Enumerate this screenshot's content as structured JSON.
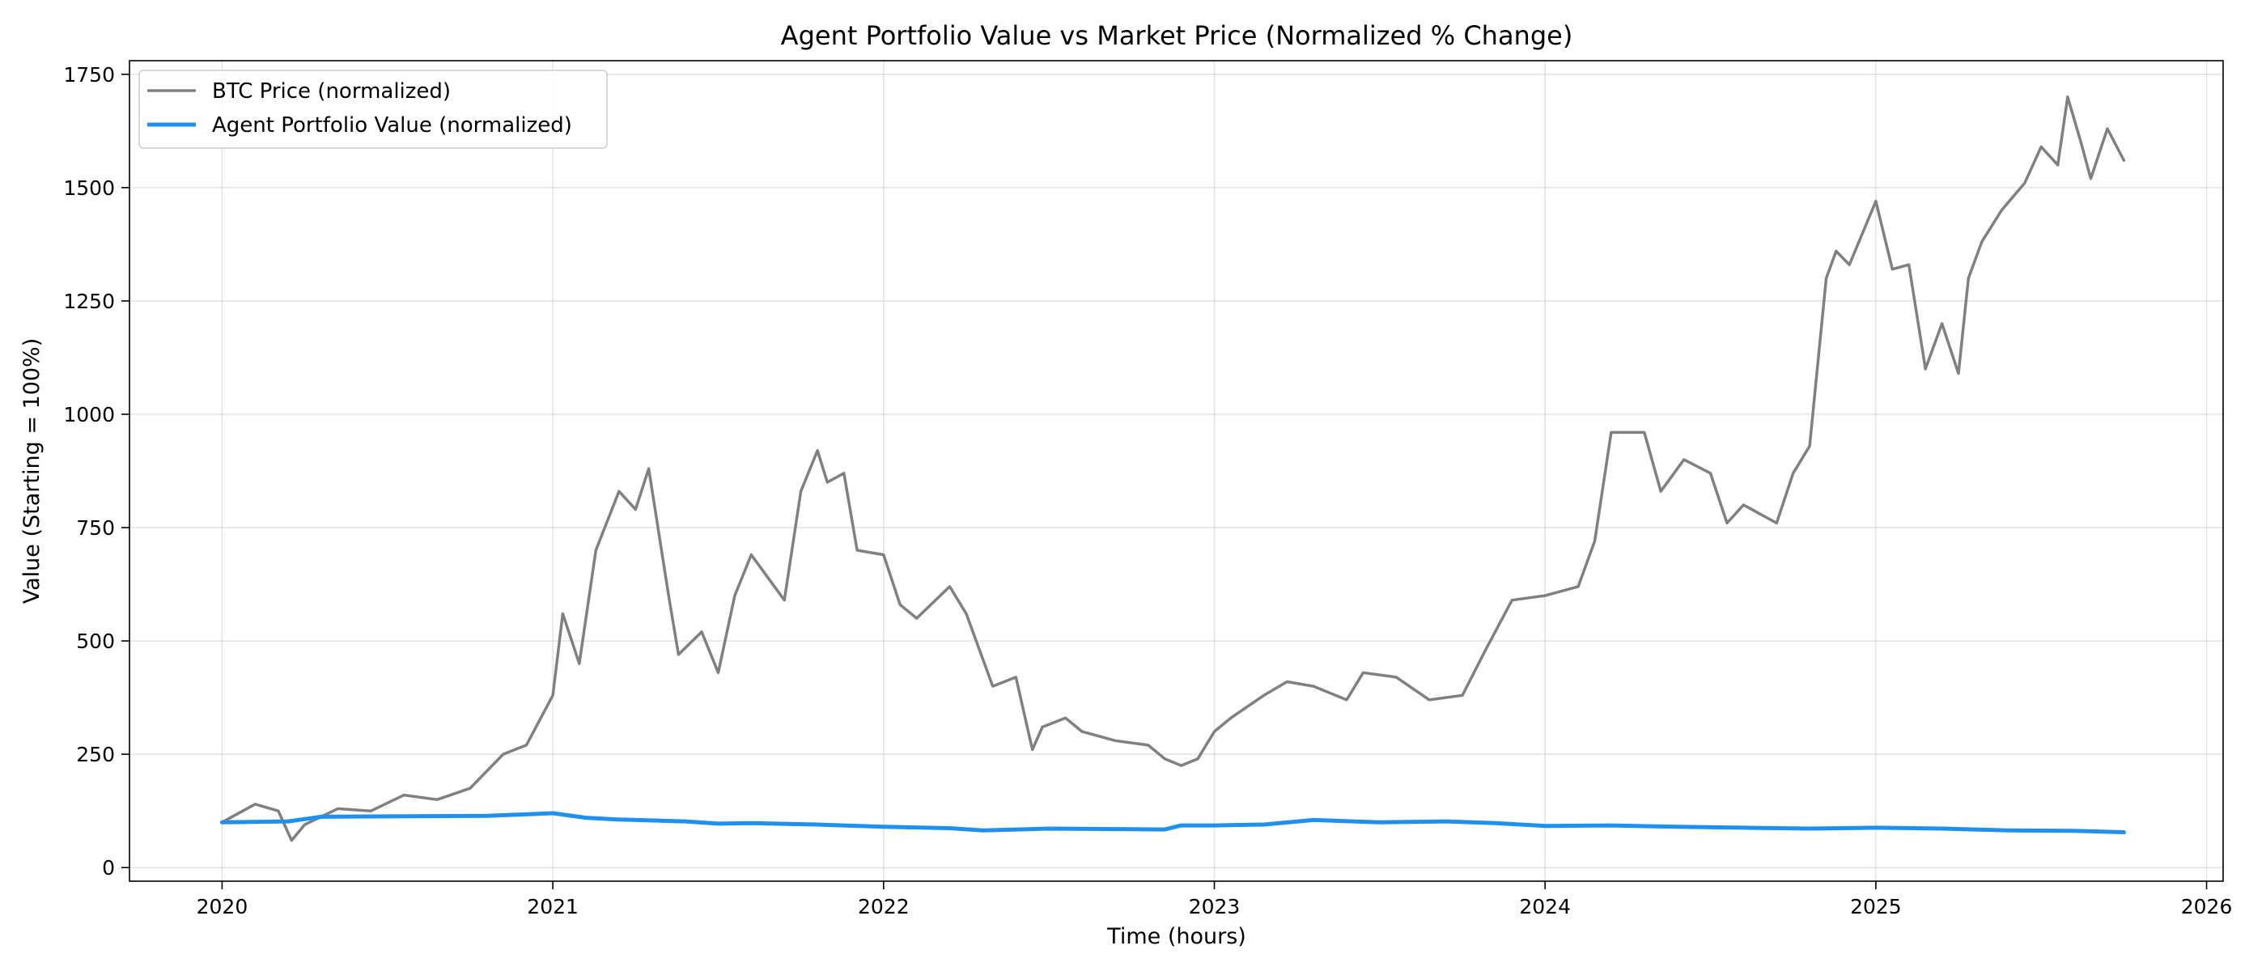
{
  "chart_data": {
    "type": "line",
    "title": "Agent Portfolio Value vs Market Price (Normalized % Change)",
    "xlabel": "Time (hours)",
    "ylabel": "Value (Starting = 100%)",
    "x_unit": "year",
    "xlim": [
      2019.72,
      2026.05
    ],
    "ylim": [
      -30,
      1780
    ],
    "x_ticks": [
      2020,
      2021,
      2022,
      2023,
      2024,
      2025,
      2026
    ],
    "x_tick_labels": [
      "2020",
      "2021",
      "2022",
      "2023",
      "2024",
      "2025",
      "2026"
    ],
    "y_ticks": [
      0,
      250,
      500,
      750,
      1000,
      1250,
      1500,
      1750
    ],
    "y_tick_labels": [
      "0",
      "250",
      "500",
      "750",
      "1000",
      "1250",
      "1500",
      "1750"
    ],
    "grid": true,
    "legend_position": "top-left",
    "series": [
      {
        "name": "BTC Price (normalized)",
        "color": "#808080",
        "x": [
          2020.0,
          2020.1,
          2020.17,
          2020.21,
          2020.25,
          2020.35,
          2020.45,
          2020.55,
          2020.65,
          2020.75,
          2020.85,
          2020.92,
          2021.0,
          2021.03,
          2021.08,
          2021.13,
          2021.2,
          2021.25,
          2021.29,
          2021.35,
          2021.38,
          2021.45,
          2021.5,
          2021.55,
          2021.6,
          2021.7,
          2021.75,
          2021.8,
          2021.83,
          2021.88,
          2021.92,
          2022.0,
          2022.05,
          2022.1,
          2022.2,
          2022.25,
          2022.33,
          2022.4,
          2022.45,
          2022.48,
          2022.55,
          2022.6,
          2022.7,
          2022.8,
          2022.85,
          2022.9,
          2022.95,
          2023.0,
          2023.05,
          2023.15,
          2023.22,
          2023.3,
          2023.4,
          2023.45,
          2023.55,
          2023.65,
          2023.75,
          2023.82,
          2023.9,
          2024.0,
          2024.1,
          2024.15,
          2024.2,
          2024.3,
          2024.35,
          2024.42,
          2024.5,
          2024.55,
          2024.6,
          2024.7,
          2024.75,
          2024.8,
          2024.85,
          2024.88,
          2024.92,
          2025.0,
          2025.05,
          2025.1,
          2025.15,
          2025.2,
          2025.25,
          2025.28,
          2025.32,
          2025.38,
          2025.45,
          2025.5,
          2025.55,
          2025.58,
          2025.62,
          2025.65,
          2025.7,
          2025.75
        ],
        "y": [
          100,
          140,
          125,
          60,
          95,
          130,
          125,
          160,
          150,
          175,
          250,
          270,
          380,
          560,
          450,
          700,
          830,
          790,
          880,
          600,
          470,
          520,
          430,
          600,
          690,
          590,
          830,
          920,
          850,
          870,
          700,
          690,
          580,
          550,
          620,
          560,
          400,
          420,
          260,
          310,
          330,
          300,
          280,
          270,
          240,
          225,
          240,
          300,
          330,
          380,
          410,
          400,
          370,
          430,
          420,
          370,
          380,
          480,
          590,
          600,
          620,
          720,
          960,
          960,
          830,
          900,
          870,
          760,
          800,
          760,
          870,
          930,
          1300,
          1360,
          1330,
          1470,
          1320,
          1330,
          1100,
          1200,
          1090,
          1300,
          1380,
          1450,
          1510,
          1590,
          1550,
          1700,
          1600,
          1520,
          1630,
          1560
        ]
      },
      {
        "name": "Agent Portfolio Value (normalized)",
        "color": "#1e90f0",
        "x": [
          2020.0,
          2020.2,
          2020.3,
          2020.5,
          2020.8,
          2021.0,
          2021.1,
          2021.2,
          2021.4,
          2021.5,
          2021.6,
          2021.8,
          2022.0,
          2022.2,
          2022.3,
          2022.5,
          2022.7,
          2022.85,
          2022.9,
          2023.0,
          2023.15,
          2023.3,
          2023.5,
          2023.7,
          2023.85,
          2024.0,
          2024.2,
          2024.4,
          2024.6,
          2024.8,
          2025.0,
          2025.2,
          2025.4,
          2025.6,
          2025.75
        ],
        "y": [
          100,
          102,
          112,
          113,
          114,
          120,
          110,
          106,
          102,
          97,
          98,
          95,
          90,
          87,
          82,
          86,
          85,
          84,
          93,
          93,
          95,
          105,
          100,
          102,
          98,
          92,
          93,
          90,
          88,
          86,
          88,
          86,
          82,
          81,
          78
        ]
      }
    ]
  }
}
